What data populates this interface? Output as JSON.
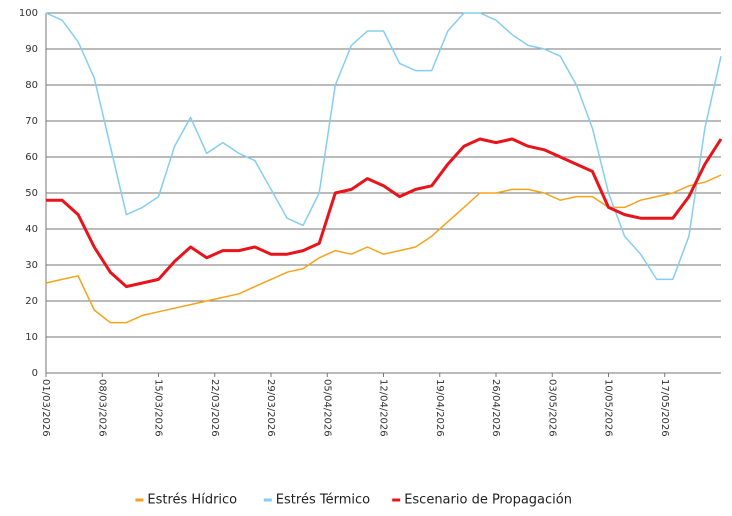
{
  "chart_data": {
    "type": "line",
    "x": [
      "01/03/2026",
      "03/03/2026",
      "05/03/2026",
      "07/03/2026",
      "09/03/2026",
      "11/03/2026",
      "13/03/2026",
      "15/03/2026",
      "17/03/2026",
      "19/03/2026",
      "21/03/2026",
      "23/03/2026",
      "25/03/2026",
      "27/03/2026",
      "29/03/2026",
      "31/03/2026",
      "02/04/2026",
      "04/04/2026",
      "06/04/2026",
      "08/04/2026",
      "10/04/2026",
      "12/04/2026",
      "14/04/2026",
      "16/04/2026",
      "18/04/2026",
      "20/04/2026",
      "22/04/2026",
      "24/04/2026",
      "26/04/2026",
      "28/04/2026",
      "30/04/2026",
      "02/05/2026",
      "04/05/2026",
      "06/05/2026",
      "08/05/2026",
      "10/05/2026",
      "12/05/2026",
      "14/05/2026",
      "16/05/2026",
      "18/05/2026",
      "20/05/2026",
      "22/05/2026",
      "24/05/2026"
    ],
    "series": [
      {
        "name": "Estrés Hídrico",
        "color": "#f5a31a",
        "values": [
          25,
          26,
          27,
          17.5,
          14,
          14,
          16,
          17,
          18,
          19,
          20,
          21,
          22,
          24,
          26,
          28,
          29,
          32,
          34,
          33,
          35,
          33,
          34,
          35,
          38,
          42,
          46,
          50,
          50,
          51,
          51,
          50,
          48,
          49,
          49,
          46,
          46,
          48,
          49,
          50,
          52,
          53,
          55
        ]
      },
      {
        "name": "Estrés Térmico",
        "color": "#86cdf0",
        "values": [
          100,
          98,
          92,
          82,
          63,
          44,
          46,
          49,
          63,
          71,
          61,
          64,
          61,
          59,
          51,
          43,
          41,
          50,
          80,
          91,
          95,
          95,
          86,
          84,
          84,
          95,
          100,
          100,
          98,
          94,
          91,
          90,
          88,
          80,
          68,
          50,
          38,
          33,
          26,
          26,
          38,
          68,
          88
        ]
      },
      {
        "name": "Escenario de Propagación",
        "color": "#e8141a",
        "values": [
          48,
          48,
          44,
          35,
          28,
          24,
          25,
          26,
          31,
          35,
          32,
          34,
          34,
          35,
          33,
          33,
          34,
          36,
          50,
          51,
          54,
          52,
          49,
          51,
          52,
          58,
          63,
          65,
          64,
          65,
          63,
          62,
          60,
          58,
          56,
          46,
          44,
          43,
          43,
          43,
          49,
          58,
          65
        ]
      }
    ],
    "xlim": [
      "01/03/2026",
      "24/05/2026"
    ],
    "xticks": [
      "01/03/2026",
      "08/03/2026",
      "15/03/2026",
      "22/03/2026",
      "29/03/2026",
      "05/04/2026",
      "12/04/2026",
      "19/04/2026",
      "26/04/2026",
      "03/05/2026",
      "10/05/2026",
      "17/05/2026"
    ],
    "ylim": [
      0,
      100
    ],
    "yticks": [
      0,
      10,
      20,
      30,
      40,
      50,
      60,
      70,
      80,
      90,
      100
    ],
    "grid": true,
    "legend": "bottom"
  }
}
